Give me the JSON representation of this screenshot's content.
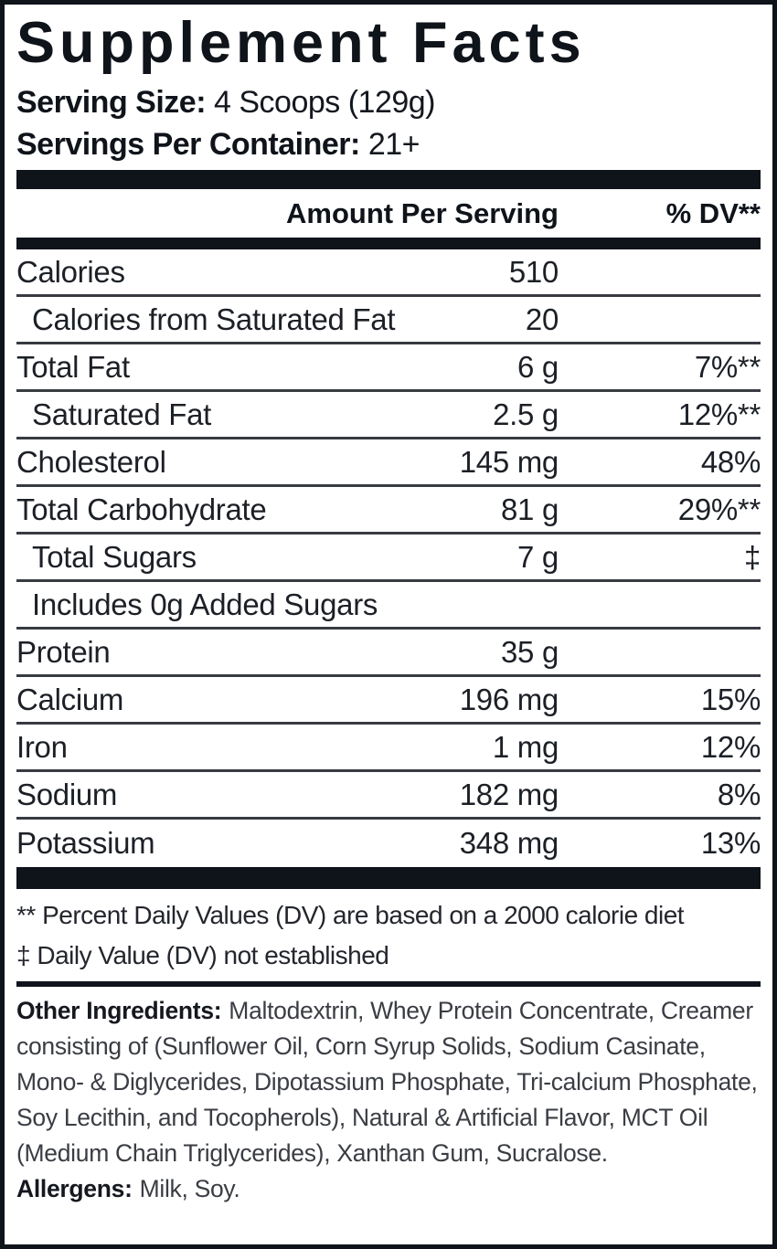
{
  "label": {
    "title": "Supplement Facts",
    "serving_size_label": "Serving Size:",
    "serving_size_value": "4 Scoops (129g)",
    "servings_per_container_label": "Servings Per Container:",
    "servings_per_container_value": "21+",
    "header": {
      "amount": "Amount Per Serving",
      "dv": "% DV**"
    },
    "rows": [
      {
        "label": "Calories",
        "amount": "510",
        "dv": "",
        "indent": false
      },
      {
        "label": "Calories from Saturated Fat",
        "amount": "20",
        "dv": "",
        "indent": true
      },
      {
        "label": "Total Fat",
        "amount": "6 g",
        "dv": "7%**",
        "indent": false
      },
      {
        "label": "Saturated Fat",
        "amount": "2.5 g",
        "dv": "12%**",
        "indent": true
      },
      {
        "label": "Cholesterol",
        "amount": "145 mg",
        "dv": "48%",
        "indent": false
      },
      {
        "label": "Total Carbohydrate",
        "amount": "81 g",
        "dv": "29%**",
        "indent": false
      },
      {
        "label": "Total Sugars",
        "amount": "7 g",
        "dv": "‡",
        "indent": true
      },
      {
        "label": "Includes 0g Added Sugars",
        "amount": "",
        "dv": "",
        "indent": true
      },
      {
        "label": "Protein",
        "amount": "35 g",
        "dv": "",
        "indent": false
      },
      {
        "label": "Calcium",
        "amount": "196 mg",
        "dv": "15%",
        "indent": false
      },
      {
        "label": "Iron",
        "amount": "1 mg",
        "dv": "12%",
        "indent": false
      },
      {
        "label": "Sodium",
        "amount": "182 mg",
        "dv": "8%",
        "indent": false
      },
      {
        "label": "Potassium",
        "amount": "348 mg",
        "dv": "13%",
        "indent": false
      }
    ],
    "footnotes": [
      "** Percent Daily Values (DV) are based on a 2000 calorie diet",
      "‡ Daily Value (DV) not established"
    ],
    "other_ingredients": {
      "label": "Other Ingredients:",
      "text": "Maltodextrin, Whey Protein Concentrate, Creamer consisting of (Sunflower Oil, Corn Syrup Solids, Sodium Casinate, Mono- & Diglycerides, Dipotassium Phosphate, Tri-calcium Phosphate, Soy Lecithin, and Tocopherols), Natural & Artificial Flavor, MCT Oil (Medium Chain Triglycerides), Xanthan Gum, Sucralose."
    },
    "allergens": {
      "label": "Allergens:",
      "text": "Milk, Soy."
    },
    "colors": {
      "ink": "#0f131a",
      "rule": "#383b41",
      "background": "#ffffff"
    }
  }
}
